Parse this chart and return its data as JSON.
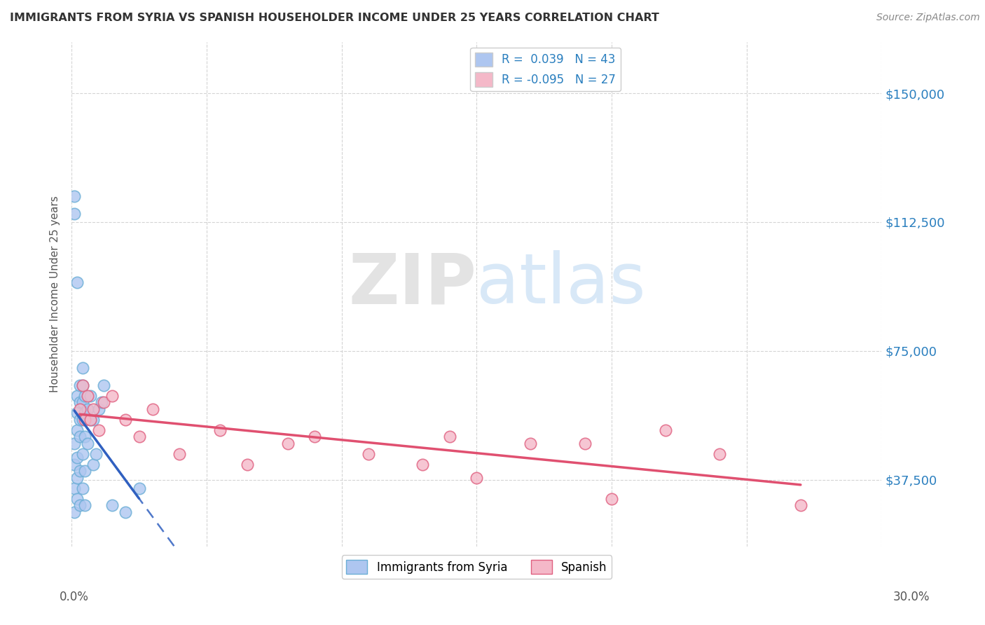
{
  "title": "IMMIGRANTS FROM SYRIA VS SPANISH HOUSEHOLDER INCOME UNDER 25 YEARS CORRELATION CHART",
  "source": "Source: ZipAtlas.com",
  "ylabel": "Householder Income Under 25 years",
  "y_tick_labels": [
    "$37,500",
    "$75,000",
    "$112,500",
    "$150,000"
  ],
  "y_tick_values": [
    37500,
    75000,
    112500,
    150000
  ],
  "ylim": [
    18000,
    165000
  ],
  "xlim": [
    0.0,
    0.3
  ],
  "legend_entries": [
    {
      "label": "R =  0.039   N = 43",
      "color": "#aec6f0"
    },
    {
      "label": "R = -0.095   N = 27",
      "color": "#f4b8c8"
    }
  ],
  "series": [
    {
      "name": "Immigrants from Syria",
      "color": "#aec6f0",
      "edge_color": "#6baed6",
      "R": 0.039,
      "N": 43,
      "x": [
        0.001,
        0.001,
        0.001,
        0.001,
        0.001,
        0.001,
        0.002,
        0.002,
        0.002,
        0.002,
        0.002,
        0.002,
        0.002,
        0.003,
        0.003,
        0.003,
        0.003,
        0.003,
        0.003,
        0.004,
        0.004,
        0.004,
        0.004,
        0.004,
        0.004,
        0.005,
        0.005,
        0.005,
        0.005,
        0.005,
        0.006,
        0.006,
        0.007,
        0.007,
        0.008,
        0.008,
        0.009,
        0.01,
        0.011,
        0.012,
        0.015,
        0.02,
        0.025
      ],
      "y": [
        115000,
        120000,
        28000,
        35000,
        42000,
        48000,
        95000,
        32000,
        38000,
        44000,
        52000,
        57000,
        62000,
        30000,
        40000,
        50000,
        55000,
        60000,
        65000,
        35000,
        45000,
        55000,
        60000,
        65000,
        70000,
        30000,
        40000,
        50000,
        57000,
        62000,
        48000,
        58000,
        55000,
        62000,
        42000,
        55000,
        45000,
        58000,
        60000,
        65000,
        30000,
        28000,
        35000
      ]
    },
    {
      "name": "Spanish",
      "color": "#f4b8c8",
      "edge_color": "#e06080",
      "R": -0.095,
      "N": 27,
      "x": [
        0.003,
        0.004,
        0.005,
        0.006,
        0.007,
        0.008,
        0.01,
        0.012,
        0.015,
        0.02,
        0.025,
        0.03,
        0.04,
        0.055,
        0.065,
        0.08,
        0.09,
        0.11,
        0.13,
        0.14,
        0.15,
        0.17,
        0.19,
        0.2,
        0.22,
        0.24,
        0.27
      ],
      "y": [
        58000,
        65000,
        55000,
        62000,
        55000,
        58000,
        52000,
        60000,
        62000,
        55000,
        50000,
        58000,
        45000,
        52000,
        42000,
        48000,
        50000,
        45000,
        42000,
        50000,
        38000,
        48000,
        48000,
        32000,
        52000,
        45000,
        30000
      ]
    }
  ],
  "blue_line_slope": 570000,
  "blue_line_intercept": 57000,
  "pink_line_slope": -50000,
  "pink_line_intercept": 59000,
  "background_color": "#ffffff",
  "grid_color": "#d0d0d0",
  "title_color": "#333333",
  "source_color": "#888888"
}
